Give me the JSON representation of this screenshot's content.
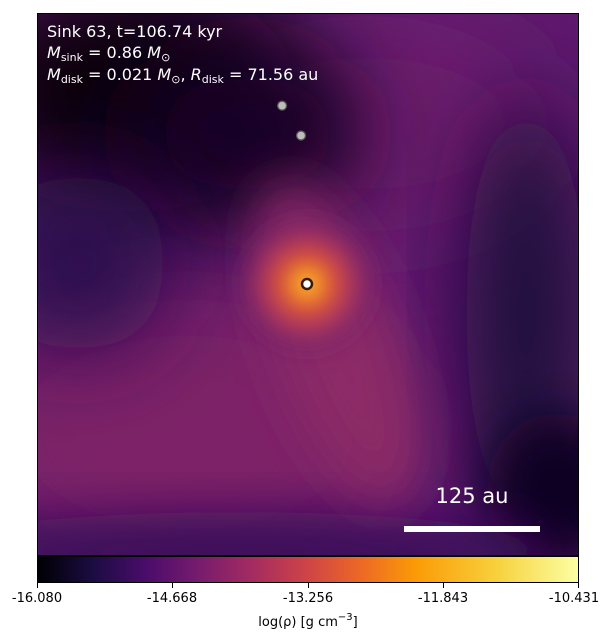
{
  "annotation": {
    "line1": "Sink 63, t=106.74 kyr",
    "msink_label": "M",
    "msink_sub": "sink",
    "msink_eq": " = 0.86 ",
    "msun_symbol": "M",
    "msun_sub": "⊙",
    "mdisk_label": "M",
    "mdisk_sub": "disk",
    "mdisk_eq": " = 0.021 ",
    "rdisk_label": "R",
    "rdisk_sub": "disk",
    "rdisk_eq": " = 71.56 au",
    "separator": ", "
  },
  "scale_bar": {
    "label": "125 au"
  },
  "colorbar": {
    "colormap": "inferno",
    "ticks": [
      "-16.080",
      "-14.668",
      "-13.256",
      "-11.843",
      "-10.431"
    ],
    "label_main": "log(ρ) [g cm",
    "label_exp": "−3",
    "label_close": "]"
  },
  "markers": {
    "central_sink": {
      "name": "sink-63"
    },
    "companions": [
      "companion-sink-1",
      "companion-sink-2"
    ]
  }
}
